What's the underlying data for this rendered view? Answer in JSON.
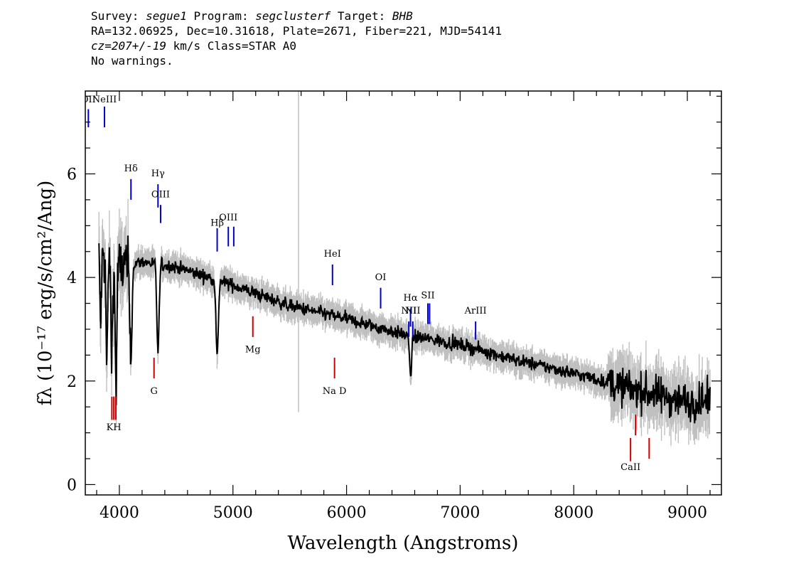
{
  "header": {
    "survey_label": "Survey:",
    "survey": "segue1",
    "program_label": "Program:",
    "program": "segclusterf",
    "target_label": "Target:",
    "target": "BHB",
    "line2": "RA=132.06925, Dec=10.31618, Plate=2671, Fiber=221, MJD=54141",
    "cz_label": "cz=",
    "cz_value": "207+/-19",
    "cz_rest": " km/s Class=STAR A0",
    "line4": "No warnings."
  },
  "colors": {
    "spectrum": "#000000",
    "error_band": "#c0c0c0",
    "emission_line": "#0000cc",
    "absorption_line": "#cc0000"
  },
  "chart_data": {
    "type": "line",
    "xlabel": "Wavelength (Angstroms)",
    "ylabel": "fλ (10⁻¹⁷ erg/s/cm²/Ang)",
    "xlim": [
      3700,
      9300
    ],
    "ylim": [
      -0.2,
      7.6
    ],
    "x_ticks": [
      4000,
      5000,
      6000,
      7000,
      8000,
      9000
    ],
    "x_tick_labels": [
      "4000",
      "5000",
      "6000",
      "7000",
      "8000",
      "9000"
    ],
    "y_ticks": [
      0,
      2,
      4,
      6
    ],
    "y_tick_labels": [
      "0",
      "2",
      "4",
      "6"
    ],
    "grid": false,
    "continuum": {
      "x": [
        3820,
        3900,
        4000,
        4200,
        4500,
        5000,
        5500,
        6000,
        6500,
        7000,
        7500,
        8000,
        8500,
        9000,
        9200
      ],
      "y": [
        4.5,
        4.3,
        4.2,
        4.3,
        4.2,
        3.85,
        3.45,
        3.2,
        2.9,
        2.7,
        2.4,
        2.15,
        1.85,
        1.6,
        1.6
      ]
    },
    "absorption_features": [
      {
        "x": 3835,
        "depth": 1.3
      },
      {
        "x": 3889,
        "depth": 2.0
      },
      {
        "x": 3933,
        "depth": 1.8
      },
      {
        "x": 3970,
        "depth": 2.4
      },
      {
        "x": 4101,
        "depth": 1.9
      },
      {
        "x": 4340,
        "depth": 1.7
      },
      {
        "x": 4861,
        "depth": 1.5
      },
      {
        "x": 6563,
        "depth": 0.75
      }
    ],
    "emission_lines": [
      {
        "label": "OII",
        "x": 3727,
        "y_label": 7.38,
        "y1": 6.9,
        "y2": 7.25
      },
      {
        "label": "NeIII",
        "x": 3869,
        "y_label": 7.38,
        "y1": 6.9,
        "y2": 7.3
      },
      {
        "label": "Hδ",
        "x": 4102,
        "y_label": 6.05,
        "y1": 5.5,
        "y2": 5.9
      },
      {
        "label": "Hγ",
        "x": 4340,
        "y_label": 5.95,
        "y1": 5.35,
        "y2": 5.8
      },
      {
        "label": "OIII",
        "x": 4363,
        "y_label": 5.55,
        "y1": 5.05,
        "y2": 5.4
      },
      {
        "label": "Hβ",
        "x": 4861,
        "y_label": 5.0,
        "y1": 4.5,
        "y2": 4.95
      },
      {
        "label": "OIII",
        "x": 4959,
        "y_label": 5.1,
        "y1": 4.6,
        "y2": 4.98
      },
      {
        "label": "",
        "x": 5007,
        "y1": 4.6,
        "y2": 4.98
      },
      {
        "label": "HeI",
        "x": 5876,
        "y_label": 4.4,
        "y1": 3.85,
        "y2": 4.25
      },
      {
        "label": "OI",
        "x": 6300,
        "y_label": 3.95,
        "y1": 3.4,
        "y2": 3.8
      },
      {
        "label": "NII",
        "x": 6548,
        "y_label": 3.3,
        "y1": 2.85,
        "y2": 3.15
      },
      {
        "label": "Hα",
        "x": 6563,
        "y_label": 3.55,
        "y1": 3.05,
        "y2": 3.4
      },
      {
        "label": "NII",
        "x": 6583,
        "y_label": 3.3,
        "y1": 2.85,
        "y2": 3.15
      },
      {
        "label": "SII",
        "x": 6716,
        "y_label": 3.6,
        "y1": 3.1,
        "y2": 3.5
      },
      {
        "label": "",
        "x": 6731,
        "y1": 3.1,
        "y2": 3.5
      },
      {
        "label": "ArIII",
        "x": 7136,
        "y_label": 3.3,
        "y1": 2.8,
        "y2": 3.15
      }
    ],
    "absorption_lines": [
      {
        "label": "KH",
        "x": 3951,
        "y_label": 1.05,
        "y1": 1.25,
        "y2": 1.7
      },
      {
        "label": "",
        "x": 3934,
        "y1": 1.25,
        "y2": 1.7
      },
      {
        "label": "",
        "x": 3969,
        "y1": 1.25,
        "y2": 1.7
      },
      {
        "label": "G",
        "x": 4305,
        "y_label": 1.75,
        "y1": 2.05,
        "y2": 2.45
      },
      {
        "label": "Mg",
        "x": 5175,
        "y_label": 2.55,
        "y1": 2.85,
        "y2": 3.25
      },
      {
        "label": "Na D",
        "x": 5894,
        "y_label": 1.75,
        "y1": 2.05,
        "y2": 2.45
      },
      {
        "label": "CaII",
        "x": 8500,
        "y_label": 0.28,
        "y1": 0.45,
        "y2": 0.9
      },
      {
        "label": "",
        "x": 8544,
        "y1": 0.95,
        "y2": 1.35
      },
      {
        "label": "",
        "x": 8664,
        "y1": 0.5,
        "y2": 0.9
      }
    ],
    "sky_line": {
      "x": 5577,
      "y1": 1.4,
      "y2": 7.6
    }
  }
}
